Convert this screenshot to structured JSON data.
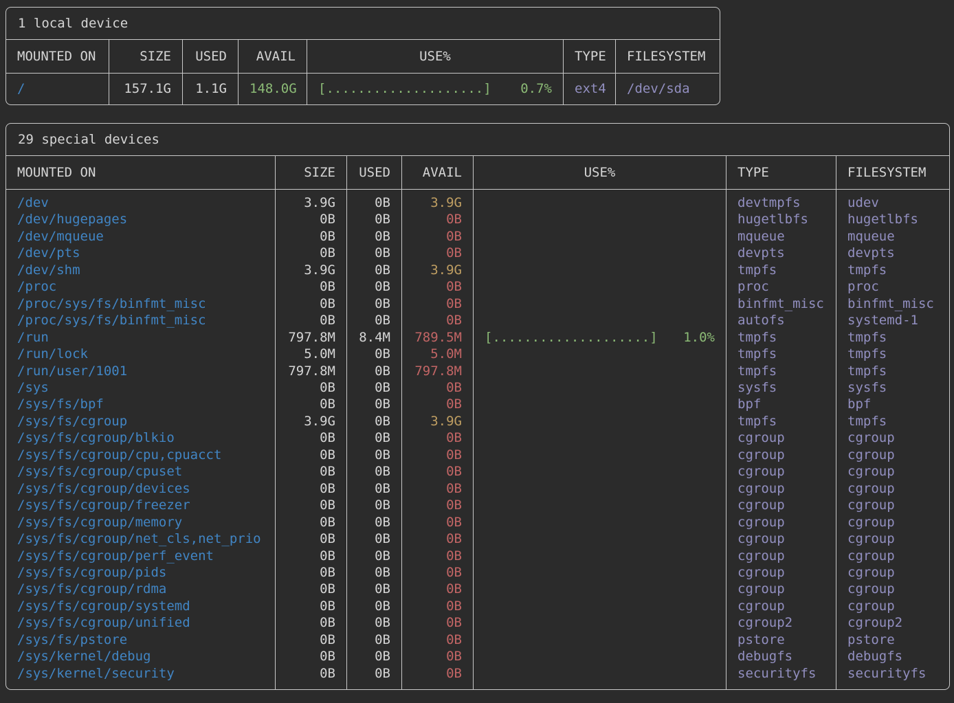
{
  "palette": {
    "background": "#2b2b2b",
    "border": "#c9c9c9",
    "text": "#d5d5d5",
    "mount_point_blue": "#4185c4",
    "filesystem_purple": "#928fc0",
    "ok_green": "#8cbb76",
    "warn_yellow": "#bf9e62",
    "low_red": "#c26565"
  },
  "local_table": {
    "title": "1 local device",
    "headers": {
      "mounted": "MOUNTED ON",
      "size": "SIZE",
      "used": "USED",
      "avail": "AVAIL",
      "use": "USE%",
      "type": "TYPE",
      "filesystem": "FILESYSTEM"
    },
    "row": {
      "mounted": "/",
      "size": "157.1G",
      "used": "1.1G",
      "avail": "148.0G",
      "avail_color": "green",
      "bar": "[....................]",
      "pct": "0.7%",
      "type": "ext4",
      "filesystem": "/dev/sda"
    }
  },
  "special_table": {
    "title": "29 special devices",
    "headers": {
      "mounted": "MOUNTED ON",
      "size": "SIZE",
      "used": "USED",
      "avail": "AVAIL",
      "use": "USE%",
      "type": "TYPE",
      "filesystem": "FILESYSTEM"
    },
    "rows": [
      {
        "mounted": "/dev",
        "size": "3.9G",
        "used": "0B",
        "avail": "3.9G",
        "avail_color": "yellow",
        "bar": "",
        "pct": "",
        "type": "devtmpfs",
        "filesystem": "udev"
      },
      {
        "mounted": "/dev/hugepages",
        "size": "0B",
        "used": "0B",
        "avail": "0B",
        "avail_color": "red",
        "bar": "",
        "pct": "",
        "type": "hugetlbfs",
        "filesystem": "hugetlbfs"
      },
      {
        "mounted": "/dev/mqueue",
        "size": "0B",
        "used": "0B",
        "avail": "0B",
        "avail_color": "red",
        "bar": "",
        "pct": "",
        "type": "mqueue",
        "filesystem": "mqueue"
      },
      {
        "mounted": "/dev/pts",
        "size": "0B",
        "used": "0B",
        "avail": "0B",
        "avail_color": "red",
        "bar": "",
        "pct": "",
        "type": "devpts",
        "filesystem": "devpts"
      },
      {
        "mounted": "/dev/shm",
        "size": "3.9G",
        "used": "0B",
        "avail": "3.9G",
        "avail_color": "yellow",
        "bar": "",
        "pct": "",
        "type": "tmpfs",
        "filesystem": "tmpfs"
      },
      {
        "mounted": "/proc",
        "size": "0B",
        "used": "0B",
        "avail": "0B",
        "avail_color": "red",
        "bar": "",
        "pct": "",
        "type": "proc",
        "filesystem": "proc"
      },
      {
        "mounted": "/proc/sys/fs/binfmt_misc",
        "size": "0B",
        "used": "0B",
        "avail": "0B",
        "avail_color": "red",
        "bar": "",
        "pct": "",
        "type": "binfmt_misc",
        "filesystem": "binfmt_misc"
      },
      {
        "mounted": "/proc/sys/fs/binfmt_misc",
        "size": "0B",
        "used": "0B",
        "avail": "0B",
        "avail_color": "red",
        "bar": "",
        "pct": "",
        "type": "autofs",
        "filesystem": "systemd-1"
      },
      {
        "mounted": "/run",
        "size": "797.8M",
        "used": "8.4M",
        "avail": "789.5M",
        "avail_color": "red",
        "bar": "[....................]",
        "pct": "1.0%",
        "type": "tmpfs",
        "filesystem": "tmpfs"
      },
      {
        "mounted": "/run/lock",
        "size": "5.0M",
        "used": "0B",
        "avail": "5.0M",
        "avail_color": "red",
        "bar": "",
        "pct": "",
        "type": "tmpfs",
        "filesystem": "tmpfs"
      },
      {
        "mounted": "/run/user/1001",
        "size": "797.8M",
        "used": "0B",
        "avail": "797.8M",
        "avail_color": "red",
        "bar": "",
        "pct": "",
        "type": "tmpfs",
        "filesystem": "tmpfs"
      },
      {
        "mounted": "/sys",
        "size": "0B",
        "used": "0B",
        "avail": "0B",
        "avail_color": "red",
        "bar": "",
        "pct": "",
        "type": "sysfs",
        "filesystem": "sysfs"
      },
      {
        "mounted": "/sys/fs/bpf",
        "size": "0B",
        "used": "0B",
        "avail": "0B",
        "avail_color": "red",
        "bar": "",
        "pct": "",
        "type": "bpf",
        "filesystem": "bpf"
      },
      {
        "mounted": "/sys/fs/cgroup",
        "size": "3.9G",
        "used": "0B",
        "avail": "3.9G",
        "avail_color": "yellow",
        "bar": "",
        "pct": "",
        "type": "tmpfs",
        "filesystem": "tmpfs"
      },
      {
        "mounted": "/sys/fs/cgroup/blkio",
        "size": "0B",
        "used": "0B",
        "avail": "0B",
        "avail_color": "red",
        "bar": "",
        "pct": "",
        "type": "cgroup",
        "filesystem": "cgroup"
      },
      {
        "mounted": "/sys/fs/cgroup/cpu,cpuacct",
        "size": "0B",
        "used": "0B",
        "avail": "0B",
        "avail_color": "red",
        "bar": "",
        "pct": "",
        "type": "cgroup",
        "filesystem": "cgroup"
      },
      {
        "mounted": "/sys/fs/cgroup/cpuset",
        "size": "0B",
        "used": "0B",
        "avail": "0B",
        "avail_color": "red",
        "bar": "",
        "pct": "",
        "type": "cgroup",
        "filesystem": "cgroup"
      },
      {
        "mounted": "/sys/fs/cgroup/devices",
        "size": "0B",
        "used": "0B",
        "avail": "0B",
        "avail_color": "red",
        "bar": "",
        "pct": "",
        "type": "cgroup",
        "filesystem": "cgroup"
      },
      {
        "mounted": "/sys/fs/cgroup/freezer",
        "size": "0B",
        "used": "0B",
        "avail": "0B",
        "avail_color": "red",
        "bar": "",
        "pct": "",
        "type": "cgroup",
        "filesystem": "cgroup"
      },
      {
        "mounted": "/sys/fs/cgroup/memory",
        "size": "0B",
        "used": "0B",
        "avail": "0B",
        "avail_color": "red",
        "bar": "",
        "pct": "",
        "type": "cgroup",
        "filesystem": "cgroup"
      },
      {
        "mounted": "/sys/fs/cgroup/net_cls,net_prio",
        "size": "0B",
        "used": "0B",
        "avail": "0B",
        "avail_color": "red",
        "bar": "",
        "pct": "",
        "type": "cgroup",
        "filesystem": "cgroup"
      },
      {
        "mounted": "/sys/fs/cgroup/perf_event",
        "size": "0B",
        "used": "0B",
        "avail": "0B",
        "avail_color": "red",
        "bar": "",
        "pct": "",
        "type": "cgroup",
        "filesystem": "cgroup"
      },
      {
        "mounted": "/sys/fs/cgroup/pids",
        "size": "0B",
        "used": "0B",
        "avail": "0B",
        "avail_color": "red",
        "bar": "",
        "pct": "",
        "type": "cgroup",
        "filesystem": "cgroup"
      },
      {
        "mounted": "/sys/fs/cgroup/rdma",
        "size": "0B",
        "used": "0B",
        "avail": "0B",
        "avail_color": "red",
        "bar": "",
        "pct": "",
        "type": "cgroup",
        "filesystem": "cgroup"
      },
      {
        "mounted": "/sys/fs/cgroup/systemd",
        "size": "0B",
        "used": "0B",
        "avail": "0B",
        "avail_color": "red",
        "bar": "",
        "pct": "",
        "type": "cgroup",
        "filesystem": "cgroup"
      },
      {
        "mounted": "/sys/fs/cgroup/unified",
        "size": "0B",
        "used": "0B",
        "avail": "0B",
        "avail_color": "red",
        "bar": "",
        "pct": "",
        "type": "cgroup2",
        "filesystem": "cgroup2"
      },
      {
        "mounted": "/sys/fs/pstore",
        "size": "0B",
        "used": "0B",
        "avail": "0B",
        "avail_color": "red",
        "bar": "",
        "pct": "",
        "type": "pstore",
        "filesystem": "pstore"
      },
      {
        "mounted": "/sys/kernel/debug",
        "size": "0B",
        "used": "0B",
        "avail": "0B",
        "avail_color": "red",
        "bar": "",
        "pct": "",
        "type": "debugfs",
        "filesystem": "debugfs"
      },
      {
        "mounted": "/sys/kernel/security",
        "size": "0B",
        "used": "0B",
        "avail": "0B",
        "avail_color": "red",
        "bar": "",
        "pct": "",
        "type": "securityfs",
        "filesystem": "securityfs"
      }
    ]
  }
}
